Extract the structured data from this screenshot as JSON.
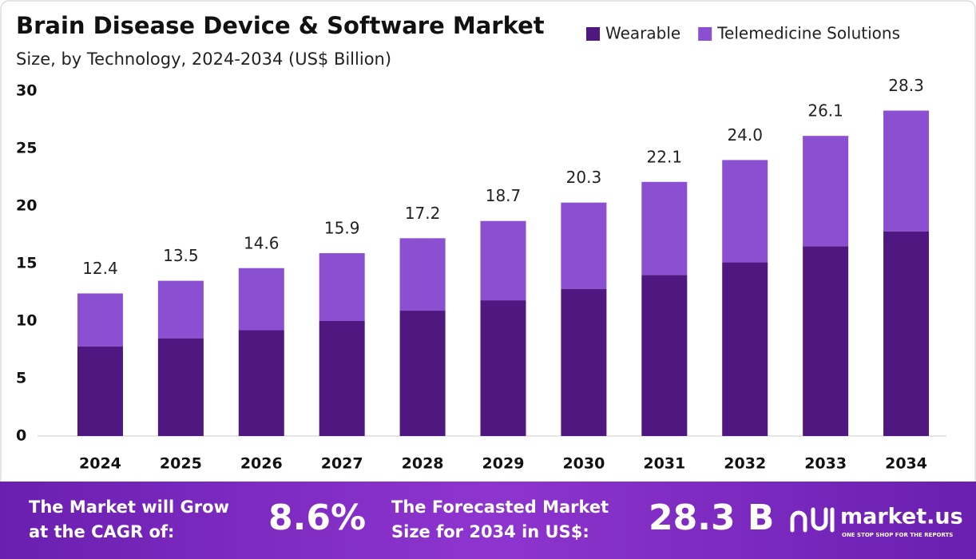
{
  "chart_data": {
    "type": "stacked-bar",
    "title": "Brain Disease Device & Software Market",
    "subtitle": "Size, by Technology, 2024-2034 (US$ Billion)",
    "categories": [
      "2024",
      "2025",
      "2026",
      "2027",
      "2028",
      "2029",
      "2030",
      "2031",
      "2032",
      "2033",
      "2034"
    ],
    "series": [
      {
        "name": "Wearable",
        "color": "#4f1780",
        "values": [
          7.8,
          8.5,
          9.2,
          10.0,
          10.9,
          11.8,
          12.8,
          14.0,
          15.1,
          16.5,
          17.8
        ]
      },
      {
        "name": "Telemedicine Solutions",
        "color": "#8b4fd1",
        "values": [
          4.6,
          5.0,
          5.4,
          5.9,
          6.3,
          6.9,
          7.5,
          8.1,
          8.9,
          9.6,
          10.5
        ]
      }
    ],
    "totals": [
      12.4,
      13.5,
      14.6,
      15.9,
      17.2,
      18.7,
      20.3,
      22.1,
      24.0,
      26.1,
      28.3
    ],
    "total_labels": [
      "12.4",
      "13.5",
      "14.6",
      "15.9",
      "17.2",
      "18.7",
      "20.3",
      "22.1",
      "24.0",
      "26.1",
      "28.3"
    ],
    "ylim": [
      0,
      30
    ],
    "yticks": [
      0,
      5,
      10,
      15,
      20,
      25,
      30
    ],
    "grid": false,
    "legend": "top-right"
  },
  "footer": {
    "cagr_text": [
      "The Market will Grow",
      "at the CAGR of:"
    ],
    "cagr": "8.6%",
    "forecast_text": [
      "The Forecasted Market",
      "Size for 2034 in US$:"
    ],
    "forecast": "28.3 B",
    "brand": "market.us",
    "tagline": "ONE STOP SHOP FOR THE REPORTS"
  }
}
